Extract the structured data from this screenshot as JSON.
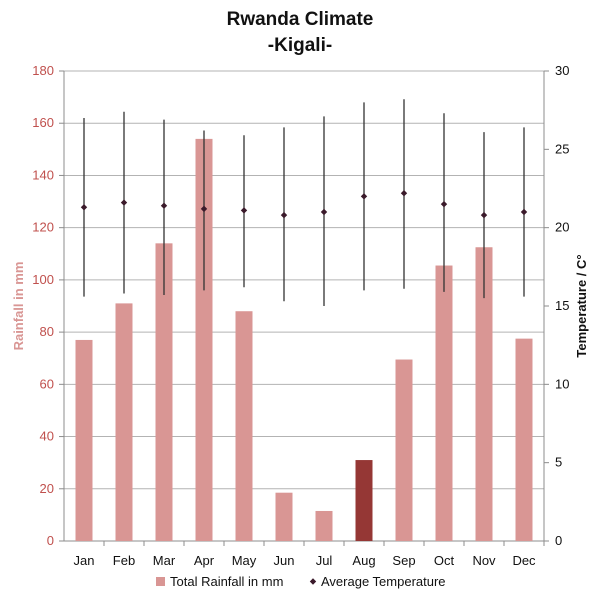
{
  "chart_data": {
    "type": "bar",
    "title": "Rwanda Climate",
    "subtitle": "-Kigali-",
    "categories": [
      "Jan",
      "Feb",
      "Mar",
      "Apr",
      "May",
      "Jun",
      "Jul",
      "Aug",
      "Sep",
      "Oct",
      "Nov",
      "Dec"
    ],
    "ylabel": "Rainfall in mm",
    "ylabel_right": "Temperature / C°",
    "ylim": [
      0,
      180
    ],
    "ylim_right": [
      0,
      30
    ],
    "yticks": [
      0,
      20,
      40,
      60,
      80,
      100,
      120,
      140,
      160,
      180
    ],
    "yticks_right": [
      0,
      5,
      10,
      15,
      20,
      25,
      30
    ],
    "grid": true,
    "legend_position": "bottom",
    "series": [
      {
        "name": "Total Rainfall in mm",
        "type": "bar",
        "axis": "left",
        "color": "#d99694",
        "highlight_color": "#953735",
        "highlight_index": 7,
        "values": [
          77,
          91,
          114,
          154,
          88,
          18.5,
          11.5,
          31,
          69.5,
          105.5,
          112.5,
          77.5
        ]
      },
      {
        "name": "Average Temperature",
        "type": "error-marker",
        "axis": "right",
        "color": "#3b1a2b",
        "values": [
          21.3,
          21.6,
          21.4,
          21.2,
          21.1,
          20.8,
          21.0,
          22.0,
          22.2,
          21.5,
          20.8,
          21.0
        ],
        "max": [
          27.0,
          27.4,
          26.9,
          26.2,
          25.9,
          26.4,
          27.1,
          28.0,
          28.2,
          27.3,
          26.1,
          26.4
        ],
        "min": [
          15.6,
          15.8,
          15.7,
          16.0,
          16.2,
          15.3,
          15.0,
          16.0,
          16.1,
          15.9,
          15.5,
          15.6
        ]
      }
    ]
  }
}
